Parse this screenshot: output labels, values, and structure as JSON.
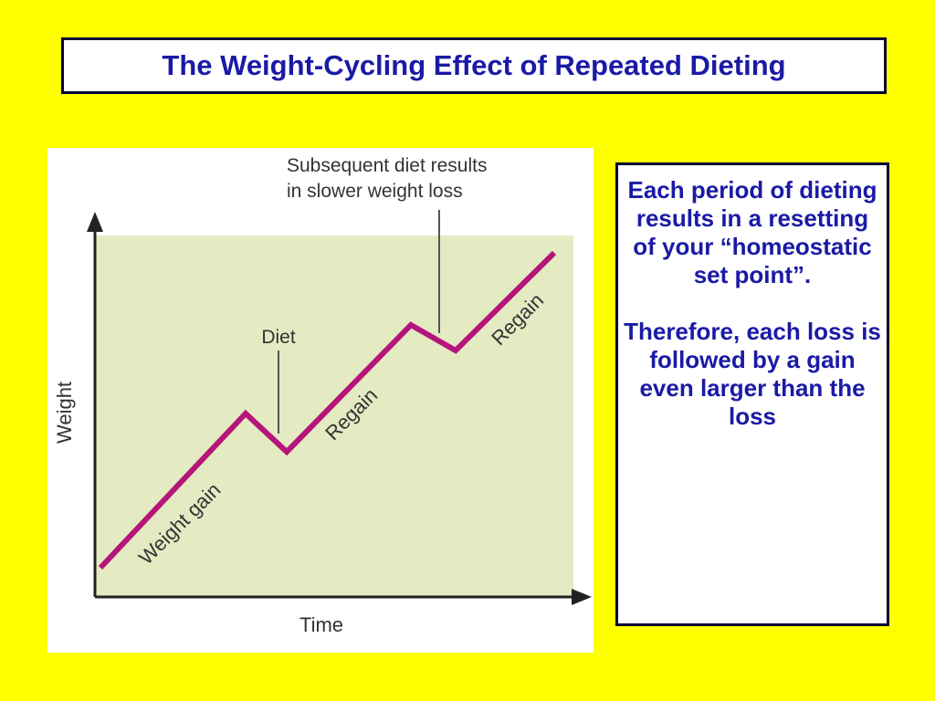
{
  "title": "The Weight-Cycling Effect of Repeated Dieting",
  "diagram": {
    "y_axis_label": "Weight",
    "x_axis_label": "Time",
    "callout_subsequent_line1": "Subsequent diet results",
    "callout_subsequent_line2": "in slower weight loss",
    "callout_diet": "Diet",
    "segment_weight_gain": "Weight gain",
    "segment_regain_1": "Regain",
    "segment_regain_2": "Regain",
    "colors": {
      "plot_area": "#e4eac2",
      "line": "#b5157a",
      "axis": "#222222"
    }
  },
  "side_text": {
    "paragraph_1": "Each period of dieting results in a resetting of your “homeostatic set point”.",
    "paragraph_2": "Therefore, each loss is followed by a gain even larger than the loss"
  }
}
